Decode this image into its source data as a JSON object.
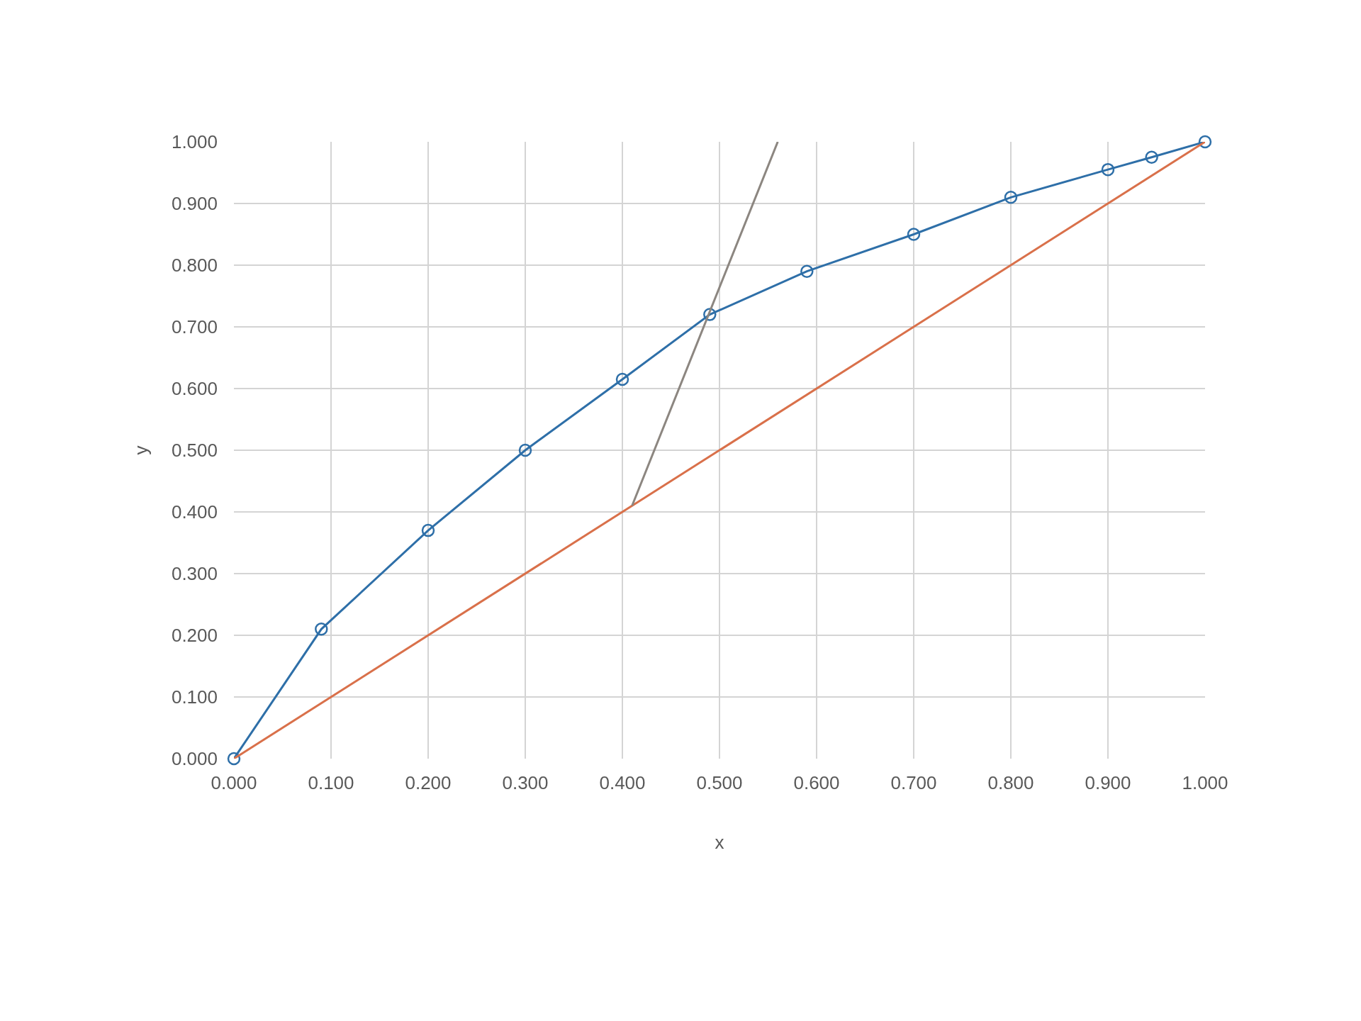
{
  "chart_data": {
    "type": "line",
    "xlabel": "x",
    "ylabel": "y",
    "series": [
      {
        "color": "#2e6fa8",
        "marker": "circle",
        "x": [
          0.0,
          0.09,
          0.2,
          0.3,
          0.4,
          0.49,
          0.59,
          0.7,
          0.8,
          0.9,
          0.945,
          1.0
        ],
        "values": [
          0.0,
          0.21,
          0.37,
          0.5,
          0.615,
          0.72,
          0.79,
          0.85,
          0.91,
          0.955,
          0.975,
          1.0
        ]
      },
      {
        "color": "#d9704a",
        "marker": "none",
        "x": [
          0.0,
          1.0
        ],
        "values": [
          0.0,
          1.0
        ]
      },
      {
        "color": "#8c8680",
        "marker": "none",
        "x": [
          0.41,
          0.56
        ],
        "values": [
          0.41,
          1.0
        ]
      }
    ],
    "xlim": [
      0,
      1
    ],
    "ylim": [
      0,
      1
    ],
    "xticks": [
      {
        "value": 0,
        "label": "0.000"
      },
      {
        "value": 0.1,
        "label": "0.100"
      },
      {
        "value": 0.2,
        "label": "0.200"
      },
      {
        "value": 0.3,
        "label": "0.300"
      },
      {
        "value": 0.4,
        "label": "0.400"
      },
      {
        "value": 0.5,
        "label": "0.500"
      },
      {
        "value": 0.6,
        "label": "0.600"
      },
      {
        "value": 0.7,
        "label": "0.700"
      },
      {
        "value": 0.8,
        "label": "0.800"
      },
      {
        "value": 0.9,
        "label": "0.900"
      },
      {
        "value": 1,
        "label": "1.000"
      }
    ],
    "yticks": [
      {
        "value": 0,
        "label": "0.000"
      },
      {
        "value": 0.1,
        "label": "0.100"
      },
      {
        "value": 0.2,
        "label": "0.200"
      },
      {
        "value": 0.3,
        "label": "0.300"
      },
      {
        "value": 0.4,
        "label": "0.400"
      },
      {
        "value": 0.5,
        "label": "0.500"
      },
      {
        "value": 0.6,
        "label": "0.600"
      },
      {
        "value": 0.7,
        "label": "0.700"
      },
      {
        "value": 0.8,
        "label": "0.800"
      },
      {
        "value": 0.9,
        "label": "0.900"
      },
      {
        "value": 1,
        "label": "1.000"
      }
    ],
    "grid": true,
    "line_style": "solid"
  }
}
